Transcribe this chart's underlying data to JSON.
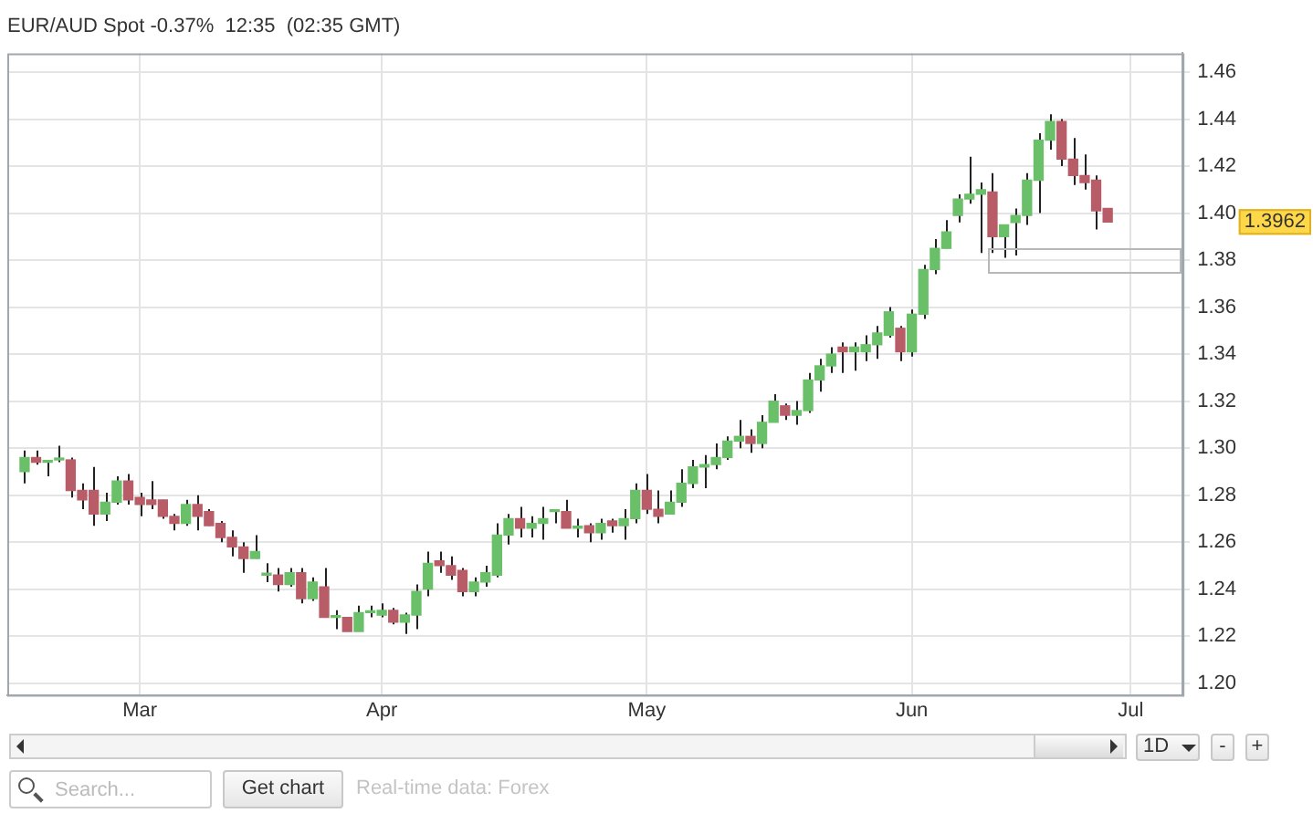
{
  "chart_data": {
    "type": "candlestick",
    "title": "EUR/AUD Spot -0.37%  12:35  (02:35 GMT)",
    "categories": [
      null,
      null,
      null,
      null,
      null,
      null,
      null,
      null,
      null,
      null,
      null,
      "Mar",
      null,
      null,
      null,
      null,
      null,
      null,
      null,
      null,
      null,
      null,
      null,
      null,
      null,
      null,
      null,
      null,
      null,
      null,
      null,
      null,
      "Apr",
      null,
      null,
      null,
      null,
      null,
      null,
      null,
      null,
      null,
      null,
      null,
      null,
      null,
      null,
      null,
      null,
      null,
      null,
      null,
      null,
      null,
      null,
      "May",
      null,
      null,
      null,
      null,
      null,
      null,
      null,
      null,
      null,
      null,
      null,
      null,
      null,
      null,
      null,
      null,
      null,
      null,
      null,
      null,
      null,
      null,
      "Jun",
      null,
      null,
      null,
      null,
      null,
      null,
      null,
      null,
      null,
      null,
      null,
      null,
      null,
      null,
      null,
      null,
      null,
      null,
      "Jul",
      null,
      null,
      null,
      null
    ],
    "ohlc": [
      null,
      [
        1.29,
        1.299,
        1.285,
        1.296
      ],
      [
        1.296,
        1.299,
        1.293,
        1.294
      ],
      [
        1.294,
        1.295,
        1.288,
        1.294
      ],
      [
        1.295,
        1.301,
        1.294,
        1.295
      ],
      [
        1.295,
        1.296,
        1.279,
        1.282
      ],
      [
        1.282,
        1.285,
        1.274,
        1.278
      ],
      [
        1.282,
        1.292,
        1.267,
        1.272
      ],
      [
        1.272,
        1.281,
        1.269,
        1.277
      ],
      [
        1.277,
        1.288,
        1.276,
        1.286
      ],
      [
        1.286,
        1.289,
        1.276,
        1.278
      ],
      [
        1.279,
        1.281,
        1.271,
        1.276
      ],
      [
        1.278,
        1.286,
        1.274,
        1.276
      ],
      [
        1.278,
        1.278,
        1.27,
        1.271
      ],
      [
        1.271,
        1.272,
        1.265,
        1.268
      ],
      [
        1.268,
        1.278,
        1.267,
        1.276
      ],
      [
        1.276,
        1.28,
        1.265,
        1.271
      ],
      [
        1.273,
        1.274,
        1.267,
        1.267
      ],
      [
        1.268,
        1.269,
        1.26,
        1.262
      ],
      [
        1.262,
        1.265,
        1.254,
        1.258
      ],
      [
        1.258,
        1.26,
        1.247,
        1.253
      ],
      [
        1.253,
        1.263,
        1.253,
        1.256
      ],
      [
        1.246,
        1.251,
        1.243,
        1.246
      ],
      [
        1.246,
        1.249,
        1.239,
        1.242
      ],
      [
        1.242,
        1.249,
        1.241,
        1.247
      ],
      [
        1.247,
        1.249,
        1.234,
        1.236
      ],
      [
        1.236,
        1.245,
        1.235,
        1.243
      ],
      [
        1.241,
        1.249,
        1.228,
        1.228
      ],
      [
        1.228,
        1.231,
        1.223,
        1.228
      ],
      [
        1.228,
        1.228,
        1.222,
        1.222
      ],
      [
        1.222,
        1.233,
        1.222,
        1.23
      ],
      [
        1.23,
        1.233,
        1.228,
        1.23
      ],
      [
        1.229,
        1.234,
        1.228,
        1.231
      ],
      [
        1.231,
        1.232,
        1.225,
        1.226
      ],
      [
        1.226,
        1.23,
        1.221,
        1.229
      ],
      [
        1.229,
        1.242,
        1.223,
        1.239
      ],
      [
        1.24,
        1.256,
        1.237,
        1.251
      ],
      [
        1.252,
        1.256,
        1.247,
        1.25
      ],
      [
        1.25,
        1.254,
        1.244,
        1.246
      ],
      [
        1.248,
        1.249,
        1.237,
        1.239
      ],
      [
        1.239,
        1.245,
        1.237,
        1.243
      ],
      [
        1.243,
        1.25,
        1.241,
        1.247
      ],
      [
        1.246,
        1.268,
        1.245,
        1.263
      ],
      [
        1.263,
        1.272,
        1.259,
        1.27
      ],
      [
        1.27,
        1.275,
        1.262,
        1.266
      ],
      [
        1.266,
        1.271,
        1.262,
        1.268
      ],
      [
        1.268,
        1.275,
        1.261,
        1.27
      ],
      [
        1.273,
        1.273,
        1.268,
        1.273
      ],
      [
        1.273,
        1.278,
        1.266,
        1.266
      ],
      [
        1.266,
        1.27,
        1.262,
        1.266
      ],
      [
        1.267,
        1.268,
        1.26,
        1.264
      ],
      [
        1.264,
        1.27,
        1.261,
        1.268
      ],
      [
        1.269,
        1.27,
        1.264,
        1.267
      ],
      [
        1.267,
        1.274,
        1.261,
        1.27
      ],
      [
        1.27,
        1.285,
        1.268,
        1.282
      ],
      [
        1.282,
        1.289,
        1.272,
        1.274
      ],
      [
        1.274,
        1.282,
        1.268,
        1.271
      ],
      [
        1.272,
        1.282,
        1.272,
        1.277
      ],
      [
        1.277,
        1.291,
        1.275,
        1.285
      ],
      [
        1.285,
        1.295,
        1.283,
        1.292
      ],
      [
        1.292,
        1.297,
        1.283,
        1.293
      ],
      [
        1.293,
        1.302,
        1.291,
        1.296
      ],
      [
        1.296,
        1.305,
        1.295,
        1.303
      ],
      [
        1.303,
        1.312,
        1.3,
        1.305
      ],
      [
        1.305,
        1.308,
        1.298,
        1.302
      ],
      [
        1.302,
        1.314,
        1.3,
        1.311
      ],
      [
        1.311,
        1.323,
        1.311,
        1.32
      ],
      [
        1.318,
        1.319,
        1.312,
        1.314
      ],
      [
        1.314,
        1.32,
        1.31,
        1.316
      ],
      [
        1.316,
        1.332,
        1.315,
        1.329
      ],
      [
        1.329,
        1.338,
        1.324,
        1.335
      ],
      [
        1.335,
        1.343,
        1.332,
        1.34
      ],
      [
        1.343,
        1.345,
        1.332,
        1.341
      ],
      [
        1.341,
        1.345,
        1.333,
        1.343
      ],
      [
        1.341,
        1.348,
        1.337,
        1.344
      ],
      [
        1.344,
        1.352,
        1.338,
        1.349
      ],
      [
        1.348,
        1.36,
        1.347,
        1.358
      ],
      [
        1.351,
        1.352,
        1.337,
        1.341
      ],
      [
        1.341,
        1.359,
        1.339,
        1.357
      ],
      [
        1.357,
        1.378,
        1.355,
        1.376
      ],
      [
        1.376,
        1.389,
        1.374,
        1.385
      ],
      [
        1.385,
        1.397,
        1.385,
        1.392
      ],
      [
        1.399,
        1.408,
        1.396,
        1.406
      ],
      [
        1.406,
        1.424,
        1.404,
        1.408
      ],
      [
        1.408,
        1.413,
        1.383,
        1.41
      ],
      [
        1.409,
        1.417,
        1.383,
        1.39
      ],
      [
        1.39,
        1.395,
        1.381,
        1.395
      ],
      [
        1.396,
        1.402,
        1.382,
        1.399
      ],
      [
        1.399,
        1.417,
        1.395,
        1.414
      ],
      [
        1.414,
        1.434,
        1.4,
        1.431
      ],
      [
        1.431,
        1.442,
        1.427,
        1.439
      ],
      [
        1.439,
        1.44,
        1.42,
        1.423
      ],
      [
        1.423,
        1.432,
        1.412,
        1.416
      ],
      [
        1.416,
        1.425,
        1.41,
        1.413
      ],
      [
        1.414,
        1.416,
        1.393,
        1.401
      ],
      [
        1.402,
        1.402,
        1.396,
        1.3962
      ],
      null,
      null,
      null,
      null,
      null,
      null
    ],
    "colors": [
      null,
      "#6abf69",
      "#b85c68",
      "#6abf69",
      "#6abf69",
      "#b85c68",
      "#b85c68",
      "#b85c68",
      "#6abf69",
      "#6abf69",
      "#b85c68",
      "#b85c68",
      "#b85c68",
      "#b85c68",
      "#b85c68",
      "#6abf69",
      "#b85c68",
      "#b85c68",
      "#b85c68",
      "#b85c68",
      "#b85c68",
      "#6abf69",
      "#6abf69",
      "#b85c68",
      "#6abf69",
      "#b85c68",
      "#6abf69",
      "#b85c68",
      "#6abf69",
      "#b85c68",
      "#6abf69",
      "#6abf69",
      "#6abf69",
      "#b85c68",
      "#6abf69",
      "#6abf69",
      "#6abf69",
      "#b85c68",
      "#b85c68",
      "#b85c68",
      "#6abf69",
      "#6abf69",
      "#6abf69",
      "#6abf69",
      "#b85c68",
      "#6abf69",
      "#6abf69",
      "#6abf69",
      "#b85c68",
      "#6abf69",
      "#b85c68",
      "#6abf69",
      "#b85c68",
      "#6abf69",
      "#6abf69",
      "#b85c68",
      "#b85c68",
      "#6abf69",
      "#6abf69",
      "#6abf69",
      "#6abf69",
      "#6abf69",
      "#6abf69",
      "#6abf69",
      "#b85c68",
      "#6abf69",
      "#6abf69",
      "#b85c68",
      "#6abf69",
      "#6abf69",
      "#6abf69",
      "#6abf69",
      "#b85c68",
      "#6abf69",
      "#6abf69",
      "#6abf69",
      "#6abf69",
      "#b85c68",
      "#6abf69",
      "#6abf69",
      "#6abf69",
      "#6abf69",
      "#6abf69",
      "#6abf69",
      "#6abf69",
      "#b85c68",
      "#6abf69",
      "#6abf69",
      "#6abf69",
      "#6abf69",
      "#6abf69",
      "#b85c68",
      "#b85c68",
      "#b85c68",
      "#b85c68",
      "#b85c68",
      null,
      null,
      null,
      null,
      null,
      null
    ],
    "ylim": [
      1.195,
      1.468
    ],
    "yticks": [
      {
        "value": 1.2,
        "label": "1.20"
      },
      {
        "value": 1.22,
        "label": "1.22"
      },
      {
        "value": 1.24,
        "label": "1.24"
      },
      {
        "value": 1.26,
        "label": "1.26"
      },
      {
        "value": 1.28,
        "label": "1.28"
      },
      {
        "value": 1.3,
        "label": "1.30"
      },
      {
        "value": 1.32,
        "label": "1.32"
      },
      {
        "value": 1.34,
        "label": "1.34"
      },
      {
        "value": 1.36,
        "label": "1.36"
      },
      {
        "value": 1.38,
        "label": "1.38"
      },
      {
        "value": 1.4,
        "label": "1.40"
      },
      {
        "value": 1.42,
        "label": "1.42"
      },
      {
        "value": 1.44,
        "label": "1.44"
      },
      {
        "value": 1.46,
        "label": "1.46"
      }
    ],
    "grid": true,
    "annotations": [
      "1.3962",
      "Search...",
      "Get chart",
      "Real-time data: Forex",
      "1D",
      "-",
      "+"
    ]
  }
}
